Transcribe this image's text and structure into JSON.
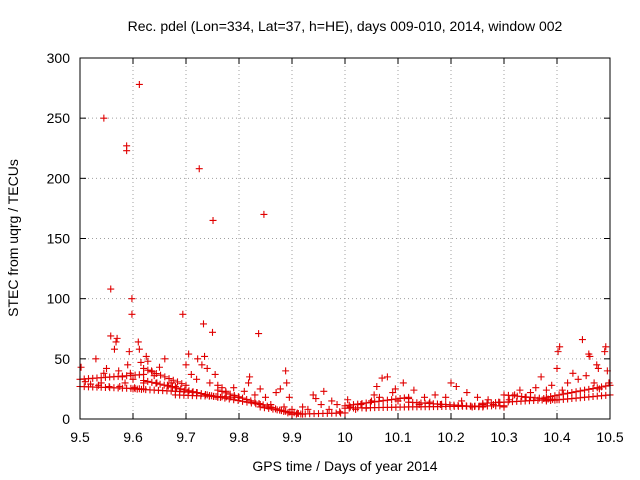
{
  "colors": {
    "points": "#e00000",
    "axis": "#000000",
    "grid": "#a0a0a0"
  },
  "chart_data": {
    "type": "scatter",
    "title": "Rec. pdel (Lon=334, Lat=37, h=HE), days 009-010, 2014, window 002",
    "xlabel": "GPS time / Days of year 2014",
    "ylabel": "STEC from uqrg / TECUs",
    "xlim": [
      9.5,
      10.5
    ],
    "ylim": [
      0,
      300
    ],
    "xticks": [
      9.5,
      9.6,
      9.7,
      9.8,
      9.9,
      10.0,
      10.1,
      10.2,
      10.3,
      10.4,
      10.5
    ],
    "xtick_labels": [
      "9.5",
      "9.6",
      "9.7",
      "9.8",
      "9.9",
      "10",
      "10.1",
      "10.2",
      "10.3",
      "10.4",
      "10.5"
    ],
    "yticks": [
      0,
      50,
      100,
      150,
      200,
      250,
      300
    ],
    "ytick_labels": [
      "0",
      "50",
      "100",
      "150",
      "200",
      "250",
      "300"
    ],
    "grid": true,
    "marker": "+",
    "series": [
      {
        "name": "STEC",
        "points": [
          [
            9.545,
            250
          ],
          [
            9.558,
            108
          ],
          [
            9.588,
            227
          ],
          [
            9.588,
            223
          ],
          [
            9.612,
            278
          ],
          [
            9.598,
            100
          ],
          [
            9.598,
            87
          ],
          [
            9.694,
            87
          ],
          [
            9.725,
            208
          ],
          [
            9.733,
            79
          ],
          [
            9.751,
            165
          ],
          [
            9.75,
            72
          ],
          [
            9.837,
            71
          ],
          [
            9.847,
            170
          ],
          [
            9.502,
            43
          ],
          [
            9.51,
            31
          ],
          [
            9.52,
            29
          ],
          [
            9.53,
            50
          ],
          [
            9.535,
            28
          ],
          [
            9.54,
            30
          ],
          [
            9.545,
            38
          ],
          [
            9.55,
            42
          ],
          [
            9.555,
            27
          ],
          [
            9.558,
            69
          ],
          [
            9.565,
            58
          ],
          [
            9.568,
            64
          ],
          [
            9.57,
            67
          ],
          [
            9.573,
            40
          ],
          [
            9.575,
            27
          ],
          [
            9.58,
            35
          ],
          [
            9.585,
            30
          ],
          [
            9.59,
            45
          ],
          [
            9.593,
            56
          ],
          [
            9.595,
            38
          ],
          [
            9.6,
            33
          ],
          [
            9.603,
            26
          ],
          [
            9.61,
            64
          ],
          [
            9.612,
            58
          ],
          [
            9.615,
            47
          ],
          [
            9.62,
            30
          ],
          [
            9.625,
            52
          ],
          [
            9.628,
            48
          ],
          [
            9.635,
            40
          ],
          [
            9.64,
            36
          ],
          [
            9.645,
            30
          ],
          [
            9.65,
            43
          ],
          [
            9.66,
            50
          ],
          [
            9.665,
            28
          ],
          [
            9.672,
            30
          ],
          [
            9.68,
            27
          ],
          [
            9.7,
            45
          ],
          [
            9.705,
            54
          ],
          [
            9.71,
            37
          ],
          [
            9.72,
            33
          ],
          [
            9.722,
            50
          ],
          [
            9.73,
            45
          ],
          [
            9.735,
            52
          ],
          [
            9.74,
            42
          ],
          [
            9.745,
            30
          ],
          [
            9.755,
            37
          ],
          [
            9.76,
            28
          ],
          [
            9.768,
            26
          ],
          [
            9.775,
            23
          ],
          [
            9.79,
            26
          ],
          [
            9.8,
            18
          ],
          [
            9.81,
            23
          ],
          [
            9.818,
            30
          ],
          [
            9.82,
            35
          ],
          [
            9.83,
            20
          ],
          [
            9.84,
            25
          ],
          [
            9.85,
            18
          ],
          [
            9.86,
            12
          ],
          [
            9.87,
            22
          ],
          [
            9.878,
            25
          ],
          [
            9.885,
            10
          ],
          [
            9.888,
            40
          ],
          [
            9.89,
            30
          ],
          [
            9.895,
            18
          ],
          [
            9.9,
            8
          ],
          [
            9.91,
            5
          ],
          [
            9.92,
            10
          ],
          [
            9.93,
            8
          ],
          [
            9.94,
            20
          ],
          [
            9.945,
            17
          ],
          [
            9.955,
            12
          ],
          [
            9.96,
            23
          ],
          [
            9.97,
            8
          ],
          [
            9.975,
            15
          ],
          [
            9.985,
            12
          ],
          [
            9.99,
            6
          ],
          [
            10.005,
            16
          ],
          [
            10.01,
            10
          ],
          [
            10.02,
            8
          ],
          [
            10.03,
            12
          ],
          [
            10.04,
            9
          ],
          [
            10.05,
            15
          ],
          [
            10.055,
            20
          ],
          [
            10.06,
            27
          ],
          [
            10.065,
            18
          ],
          [
            10.07,
            34
          ],
          [
            10.08,
            35
          ],
          [
            10.09,
            22
          ],
          [
            10.095,
            25
          ],
          [
            10.1,
            15
          ],
          [
            10.11,
            30
          ],
          [
            10.12,
            17
          ],
          [
            10.13,
            24
          ],
          [
            10.14,
            12
          ],
          [
            10.15,
            18
          ],
          [
            10.16,
            14
          ],
          [
            10.17,
            20
          ],
          [
            10.18,
            12
          ],
          [
            10.19,
            18
          ],
          [
            10.2,
            30
          ],
          [
            10.21,
            27
          ],
          [
            10.22,
            15
          ],
          [
            10.23,
            22
          ],
          [
            10.24,
            10
          ],
          [
            10.25,
            18
          ],
          [
            10.26,
            12
          ],
          [
            10.27,
            16
          ],
          [
            10.28,
            12
          ],
          [
            10.29,
            14
          ],
          [
            10.3,
            10
          ],
          [
            10.31,
            16
          ],
          [
            10.32,
            20
          ],
          [
            10.33,
            24
          ],
          [
            10.34,
            18
          ],
          [
            10.35,
            22
          ],
          [
            10.36,
            26
          ],
          [
            10.37,
            35
          ],
          [
            10.38,
            24
          ],
          [
            10.39,
            28
          ],
          [
            10.4,
            42
          ],
          [
            10.402,
            56
          ],
          [
            10.405,
            60
          ],
          [
            10.41,
            24
          ],
          [
            10.42,
            30
          ],
          [
            10.43,
            38
          ],
          [
            10.44,
            33
          ],
          [
            10.448,
            66
          ],
          [
            10.455,
            36
          ],
          [
            10.46,
            54
          ],
          [
            10.462,
            52
          ],
          [
            10.47,
            30
          ],
          [
            10.475,
            45
          ],
          [
            10.478,
            42
          ],
          [
            10.48,
            25
          ],
          [
            10.49,
            56
          ],
          [
            10.492,
            60
          ],
          [
            10.495,
            40
          ],
          [
            10.498,
            30
          ]
        ],
        "bands": [
          {
            "x": [
              9.5,
              9.62
            ],
            "y": [
              27,
              25
            ]
          },
          {
            "x": [
              9.5,
              9.62
            ],
            "y": [
              33,
              37
            ]
          },
          {
            "x": [
              9.6,
              9.72
            ],
            "y": [
              25,
              22
            ]
          },
          {
            "x": [
              9.62,
              9.76
            ],
            "y": [
              32,
              18
            ]
          },
          {
            "x": [
              9.62,
              9.7
            ],
            "y": [
              42,
              28
            ]
          },
          {
            "x": [
              9.68,
              9.8
            ],
            "y": [
              20,
              18
            ]
          },
          {
            "x": [
              9.74,
              9.84
            ],
            "y": [
              20,
              12
            ]
          },
          {
            "x": [
              9.76,
              9.9
            ],
            "y": [
              24,
              4
            ]
          },
          {
            "x": [
              9.84,
              9.92
            ],
            "y": [
              10,
              4
            ]
          },
          {
            "x": [
              9.9,
              10.0
            ],
            "y": [
              4,
              5
            ]
          },
          {
            "x": [
              10.0,
              10.12
            ],
            "y": [
              9,
              10
            ]
          },
          {
            "x": [
              10.0,
              10.12
            ],
            "y": [
              11,
              18
            ]
          },
          {
            "x": [
              10.12,
              10.3
            ],
            "y": [
              10,
              11
            ]
          },
          {
            "x": [
              10.12,
              10.26
            ],
            "y": [
              14,
              10
            ]
          },
          {
            "x": [
              10.26,
              10.38
            ],
            "y": [
              13,
              16
            ]
          },
          {
            "x": [
              10.3,
              10.4
            ],
            "y": [
              20,
              16
            ]
          },
          {
            "x": [
              10.38,
              10.5
            ],
            "y": [
              15,
              20
            ]
          },
          {
            "x": [
              10.38,
              10.5
            ],
            "y": [
              18,
              28
            ]
          }
        ]
      }
    ]
  }
}
